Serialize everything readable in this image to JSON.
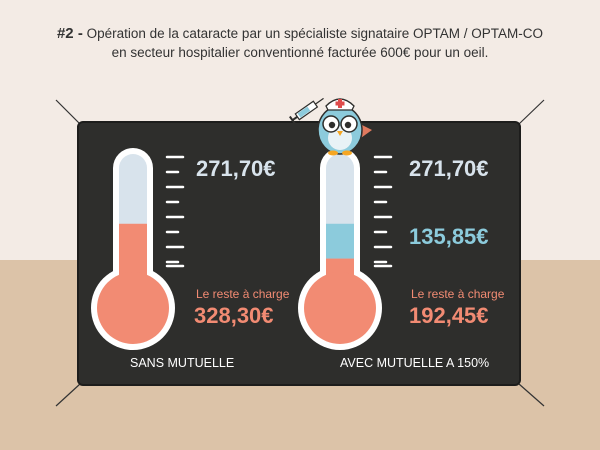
{
  "header": {
    "number": "#2 -",
    "line1": "Opération de la cataracte par un spécialiste signataire OPTAM / OPTAM-CO",
    "line2": "en secteur hospitalier conventionné facturée 600€ pour un oeil."
  },
  "left": {
    "top_value": "271,70€",
    "reste_label": "Le reste à charge",
    "reste_value": "328,30€",
    "caption": "SANS MUTUELLE",
    "fill_fraction": 0.547
  },
  "right": {
    "top_value": "271,70€",
    "middle_value": "135,85€",
    "reste_label": "Le reste à charge",
    "reste_value": "192,45€",
    "caption": "AVEC MUTUELLE A 150%",
    "fill_fraction": 0.321,
    "mutuelle_fraction": 0.226
  },
  "colors": {
    "board": "#2e2e2c",
    "salmon": "#f28b73",
    "light_blue": "#d8e3ec",
    "blue": "#8ccbdc",
    "text_light": "#d8e3ec",
    "text_salmon": "#f28b73"
  },
  "icons": {
    "mascot": "owl-nurse-icon"
  }
}
